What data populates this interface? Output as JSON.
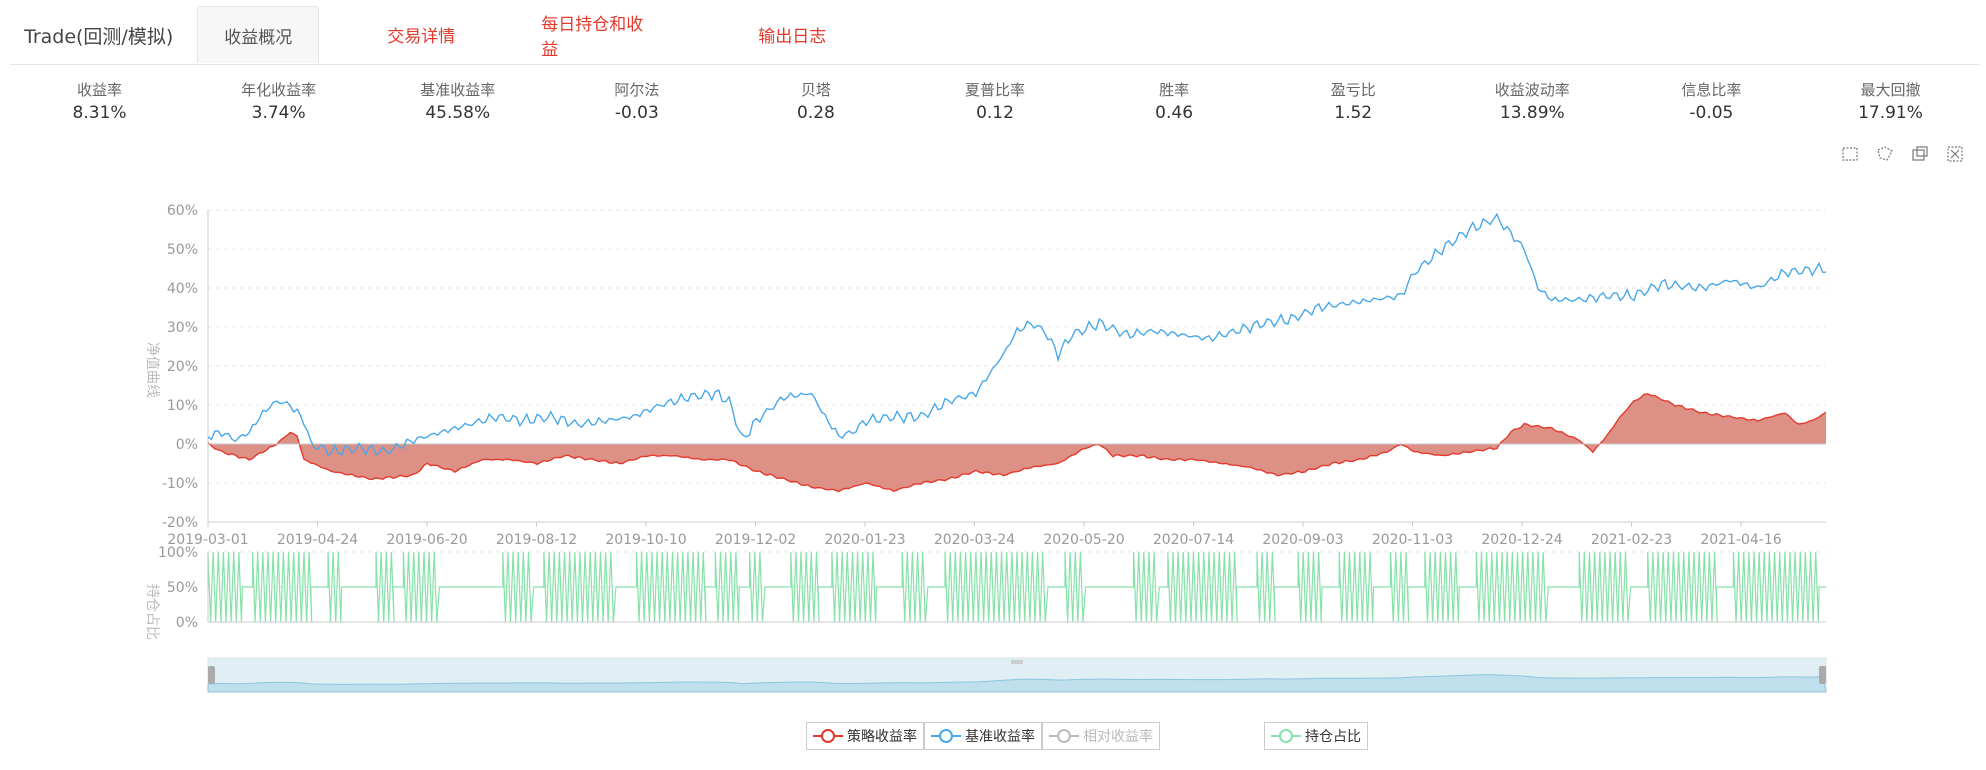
{
  "app": {
    "title": "Trade(回测/模拟)"
  },
  "tabs": [
    {
      "label": "收益概况",
      "active": true
    },
    {
      "label": "交易详情"
    },
    {
      "label": "每日持仓和收益"
    },
    {
      "label": "输出日志"
    }
  ],
  "stats": [
    {
      "label": "收益率",
      "value": "8.31%"
    },
    {
      "label": "年化收益率",
      "value": "3.74%"
    },
    {
      "label": "基准收益率",
      "value": "45.58%"
    },
    {
      "label": "阿尔法",
      "value": "-0.03"
    },
    {
      "label": "贝塔",
      "value": "0.28"
    },
    {
      "label": "夏普比率",
      "value": "0.12"
    },
    {
      "label": "胜率",
      "value": "0.46"
    },
    {
      "label": "盈亏比",
      "value": "1.52"
    },
    {
      "label": "收益波动率",
      "value": "13.89%"
    },
    {
      "label": "信息比率",
      "value": "-0.05"
    },
    {
      "label": "最大回撤",
      "value": "17.91%"
    }
  ],
  "toolbox": [
    "zoom-select-icon",
    "lasso-icon",
    "zoom-back-icon",
    "reset-icon"
  ],
  "chart_data": [
    {
      "type": "area",
      "ylabel": "净值曲线",
      "ylim": [
        -20,
        60
      ],
      "yticks": [
        "60%",
        "50%",
        "40%",
        "30%",
        "20%",
        "10%",
        "0%",
        "-10%",
        "-20%"
      ],
      "x_ticks": [
        "2019-03-01",
        "2019-04-24",
        "2019-06-20",
        "2019-08-12",
        "2019-10-10",
        "2019-12-02",
        "2020-01-23",
        "2020-03-24",
        "2020-05-20",
        "2020-07-14",
        "2020-09-03",
        "2020-11-03",
        "2020-12-24",
        "2021-02-23",
        "2021-04-16"
      ],
      "series": [
        {
          "name": "策略收益率",
          "color": "#e33a2c",
          "fill": "#db8a80",
          "points": [
            [
              0,
              0
            ],
            [
              8,
              -2
            ],
            [
              16,
              -3
            ],
            [
              24,
              -4
            ],
            [
              32,
              -2
            ],
            [
              40,
              0
            ],
            [
              48,
              3
            ],
            [
              52,
              2
            ],
            [
              56,
              -4
            ],
            [
              72,
              -7
            ],
            [
              96,
              -9
            ],
            [
              120,
              -8
            ],
            [
              128,
              -5
            ],
            [
              144,
              -7
            ],
            [
              160,
              -4
            ],
            [
              176,
              -4
            ],
            [
              192,
              -5
            ],
            [
              208,
              -3
            ],
            [
              224,
              -4
            ],
            [
              240,
              -5
            ],
            [
              256,
              -3
            ],
            [
              272,
              -3
            ],
            [
              288,
              -4
            ],
            [
              304,
              -4
            ],
            [
              320,
              -7
            ],
            [
              336,
              -9
            ],
            [
              352,
              -11
            ],
            [
              368,
              -12
            ],
            [
              384,
              -10
            ],
            [
              400,
              -12
            ],
            [
              416,
              -10
            ],
            [
              432,
              -9
            ],
            [
              448,
              -7
            ],
            [
              464,
              -8
            ],
            [
              480,
              -6
            ],
            [
              496,
              -5
            ],
            [
              512,
              -1
            ],
            [
              520,
              0
            ],
            [
              528,
              -3
            ],
            [
              544,
              -3
            ],
            [
              560,
              -4
            ],
            [
              576,
              -4
            ],
            [
              592,
              -5
            ],
            [
              608,
              -6
            ],
            [
              624,
              -8
            ],
            [
              640,
              -7
            ],
            [
              656,
              -5
            ],
            [
              672,
              -4
            ],
            [
              688,
              -2
            ],
            [
              696,
              0
            ],
            [
              704,
              -2
            ],
            [
              720,
              -3
            ],
            [
              736,
              -2
            ],
            [
              752,
              -1
            ],
            [
              760,
              3
            ],
            [
              768,
              5
            ],
            [
              784,
              4
            ],
            [
              800,
              1
            ],
            [
              808,
              -2
            ],
            [
              816,
              2
            ],
            [
              824,
              7
            ],
            [
              832,
              11
            ],
            [
              840,
              13
            ],
            [
              856,
              10
            ],
            [
              872,
              8
            ],
            [
              888,
              7
            ],
            [
              904,
              6
            ],
            [
              912,
              7
            ],
            [
              920,
              8
            ],
            [
              928,
              5
            ],
            [
              936,
              6
            ],
            [
              944,
              8
            ]
          ]
        },
        {
          "name": "基准收益率",
          "color": "#4aa8e8",
          "points": [
            [
              0,
              2
            ],
            [
              8,
              3
            ],
            [
              16,
              1
            ],
            [
              24,
              3
            ],
            [
              32,
              8
            ],
            [
              40,
              11
            ],
            [
              48,
              10
            ],
            [
              56,
              6
            ],
            [
              60,
              0
            ],
            [
              72,
              -2
            ],
            [
              88,
              -1
            ],
            [
              104,
              -2
            ],
            [
              120,
              1
            ],
            [
              136,
              3
            ],
            [
              152,
              5
            ],
            [
              168,
              7
            ],
            [
              184,
              6
            ],
            [
              200,
              7
            ],
            [
              216,
              5
            ],
            [
              232,
              6
            ],
            [
              248,
              7
            ],
            [
              264,
              10
            ],
            [
              280,
              12
            ],
            [
              296,
              13
            ],
            [
              304,
              11
            ],
            [
              312,
              1
            ],
            [
              320,
              6
            ],
            [
              336,
              12
            ],
            [
              352,
              13
            ],
            [
              360,
              7
            ],
            [
              368,
              2
            ],
            [
              376,
              3
            ],
            [
              384,
              6
            ],
            [
              400,
              7
            ],
            [
              416,
              7
            ],
            [
              432,
              11
            ],
            [
              448,
              13
            ],
            [
              456,
              18
            ],
            [
              464,
              23
            ],
            [
              472,
              29
            ],
            [
              480,
              31
            ],
            [
              488,
              29
            ],
            [
              496,
              23
            ],
            [
              504,
              28
            ],
            [
              520,
              31
            ],
            [
              536,
              28
            ],
            [
              552,
              29
            ],
            [
              568,
              28
            ],
            [
              584,
              27
            ],
            [
              600,
              29
            ],
            [
              616,
              31
            ],
            [
              632,
              32
            ],
            [
              648,
              35
            ],
            [
              664,
              36
            ],
            [
              680,
              37
            ],
            [
              696,
              38
            ],
            [
              704,
              44
            ],
            [
              720,
              50
            ],
            [
              736,
              55
            ],
            [
              752,
              58
            ],
            [
              768,
              50
            ],
            [
              776,
              40
            ],
            [
              784,
              37
            ],
            [
              800,
              37
            ],
            [
              816,
              38
            ],
            [
              832,
              38
            ],
            [
              848,
              41
            ],
            [
              872,
              40
            ],
            [
              888,
              42
            ],
            [
              904,
              40
            ],
            [
              920,
              44
            ],
            [
              944,
              45
            ]
          ]
        }
      ],
      "note_legend_hidden": "相对收益率"
    },
    {
      "type": "line",
      "ylabel": "持仓占比",
      "ylim": [
        0,
        100
      ],
      "yticks": [
        "100%",
        "50%",
        "0%"
      ],
      "series": [
        {
          "name": "持仓占比",
          "color": "#86e2a9"
        }
      ]
    }
  ],
  "legend": [
    {
      "label": "策略收益率",
      "color": "#e33a2c"
    },
    {
      "label": "基准收益率",
      "color": "#4aa8e8"
    },
    {
      "label": "相对收益率",
      "color": "#bbbbbb"
    },
    {
      "label": "持仓占比",
      "color": "#86e2a9"
    }
  ]
}
